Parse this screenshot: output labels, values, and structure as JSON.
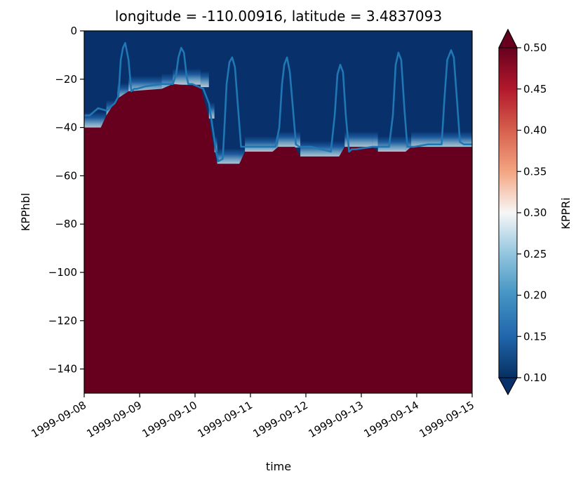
{
  "chart_data": {
    "type": "heatmap",
    "title": "longitude = -110.00916, latitude = 3.4837093",
    "xlabel": "time",
    "ylabel": "KPPhbl",
    "x_ticks": [
      "1999-09-08",
      "1999-09-09",
      "1999-09-10",
      "1999-09-11",
      "1999-09-12",
      "1999-09-13",
      "1999-09-14",
      "1999-09-15"
    ],
    "x_range": [
      0,
      7
    ],
    "y_ticks": [
      "0",
      "−20",
      "−40",
      "−60",
      "−80",
      "−100",
      "−120",
      "−140"
    ],
    "y_range": [
      -150,
      0
    ],
    "colorbar": {
      "label": "KPPRi",
      "ticks": [
        "0.10",
        "0.15",
        "0.20",
        "0.25",
        "0.30",
        "0.35",
        "0.40",
        "0.45",
        "0.50"
      ],
      "range": [
        0.1,
        0.5
      ],
      "colormap": "RdBu_r",
      "extend": "both"
    },
    "low_color": "#08306b",
    "high_color": "#67001f",
    "line_color": "#1f77b4",
    "shear_layer_base_depth": [
      [
        0.0,
        -40
      ],
      [
        0.3,
        -40
      ],
      [
        0.4,
        -35
      ],
      [
        0.6,
        -28
      ],
      [
        0.8,
        -25
      ],
      [
        1.4,
        -24
      ],
      [
        1.6,
        -22
      ],
      [
        2.1,
        -23
      ],
      [
        2.25,
        -36
      ],
      [
        2.35,
        -50
      ],
      [
        2.4,
        -55
      ],
      [
        2.8,
        -55
      ],
      [
        2.9,
        -50
      ],
      [
        3.4,
        -50
      ],
      [
        3.5,
        -48
      ],
      [
        3.8,
        -48
      ],
      [
        3.9,
        -52
      ],
      [
        4.6,
        -52
      ],
      [
        4.7,
        -48
      ],
      [
        5.2,
        -48
      ],
      [
        5.3,
        -50
      ],
      [
        5.8,
        -50
      ],
      [
        5.9,
        -48
      ],
      [
        7.0,
        -48
      ]
    ],
    "series": [
      {
        "x": [
          0.0,
          0.1,
          0.25,
          0.4,
          0.55,
          0.62,
          0.66,
          0.7,
          0.74,
          0.8,
          0.85,
          0.9,
          0.95,
          1.1,
          1.4,
          1.6,
          1.66,
          1.7,
          1.75,
          1.8,
          1.85,
          1.88,
          1.95,
          2.05,
          2.15,
          2.25,
          2.33,
          2.38,
          2.42,
          2.5,
          2.53,
          2.57,
          2.62,
          2.67,
          2.72,
          2.77,
          2.83,
          2.95,
          3.3,
          3.45,
          3.52,
          3.57,
          3.61,
          3.66,
          3.71,
          3.77,
          3.82,
          3.88,
          4.1,
          4.45,
          4.52,
          4.57,
          4.62,
          4.67,
          4.72,
          4.78,
          4.83,
          4.9,
          5.2,
          5.5,
          5.57,
          5.62,
          5.67,
          5.72,
          5.78,
          5.83,
          5.88,
          5.95,
          6.2,
          6.45,
          6.5,
          6.55,
          6.62,
          6.67,
          6.73,
          6.78,
          6.85,
          6.9,
          7.0
        ],
        "y": [
          -35,
          -35,
          -32,
          -33,
          -30,
          -27,
          -12,
          -7,
          -5,
          -12,
          -25,
          -24,
          -24,
          -23,
          -22,
          -22,
          -18,
          -11,
          -7,
          -9,
          -19,
          -22,
          -22,
          -23,
          -24,
          -30,
          -42,
          -50,
          -54,
          -53,
          -40,
          -22,
          -13,
          -11,
          -15,
          -30,
          -48,
          -48,
          -48,
          -48,
          -40,
          -22,
          -14,
          -11,
          -17,
          -33,
          -47,
          -48,
          -48,
          -50,
          -35,
          -18,
          -14,
          -17,
          -35,
          -50,
          -49,
          -49,
          -48,
          -48,
          -35,
          -14,
          -9,
          -12,
          -33,
          -48,
          -48,
          -48,
          -47,
          -47,
          -28,
          -12,
          -8,
          -11,
          -30,
          -46,
          -47,
          -47,
          -47
        ]
      }
    ],
    "grid": false
  }
}
